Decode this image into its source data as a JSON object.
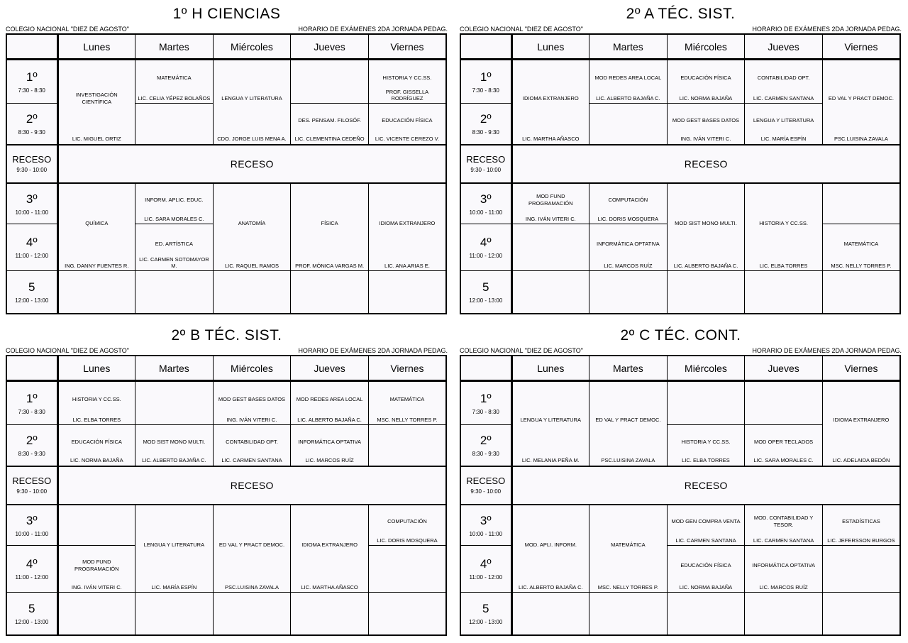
{
  "school": "COLEGIO NACIONAL \"DIEZ DE AGOSTO\"",
  "note": "HORARIO DE EXÁMENES 2DA JORNADA PEDAG.",
  "days": [
    "Lunes",
    "Martes",
    "Miércoles",
    "Jueves",
    "Viernes"
  ],
  "receso": {
    "label": "RECESO",
    "time": "9:30 - 10:00",
    "band": "RECESO"
  },
  "tables": [
    {
      "title": "1º H CIENCIAS",
      "rows": [
        {
          "period": "1º",
          "time": "7:30 - 8:30",
          "cells": [
            {
              "s": "INVESTIGACIÓN CIENTÍFICA",
              "t": "LIC. MIGUEL ORTIZ",
              "rs": 2
            },
            {
              "s": "MATEMÁTICA",
              "t": "LIC. CELIA YÉPEZ BOLAÑOS"
            },
            {
              "s": "LENGUA Y LITERATURA",
              "t": "CDO. JORGE LUIS MENA A.",
              "rs": 2
            },
            {},
            {
              "s": "HISTORIA Y CC.SS.",
              "t": "PROF. GISSELLA RODRÍGUEZ"
            }
          ]
        },
        {
          "period": "2º",
          "time": "8:30 - 9:30",
          "cells": [
            {},
            {
              "s": "DES. PENSAM. FILOSÓF.",
              "t": "LIC. CLEMENTINA CEDEÑO"
            },
            {
              "s": "EDUCACIÓN FÍSICA",
              "t": "LIC. VICENTE CEREZO V."
            }
          ]
        },
        {
          "receso": true
        },
        {
          "period": "3º",
          "time": "10:00 - 11:00",
          "cells": [
            {
              "s": "QUÍMICA",
              "t": "ING. DANNY FUENTES R.",
              "rs": 2
            },
            {
              "s": "INFORM. APLIC. EDUC.",
              "t": "LIC. SARA MORALES C."
            },
            {
              "s": "ANATOMÍA",
              "t": "LIC. RAQUEL RAMOS",
              "rs": 2
            },
            {
              "s": "FÍSICA",
              "t": "PROF. MÓNICA VARGAS M.",
              "rs": 2
            },
            {
              "s": "IDIOMA EXTRANJERO",
              "t": "LIC. ANA ARIAS E.",
              "rs": 2
            }
          ]
        },
        {
          "period": "4º",
          "time": "11:00 - 12:00",
          "cells": [
            {
              "s": "ED. ARTÍSTICA",
              "t": "LIC. CARMEN SOTOMAYOR M."
            }
          ]
        },
        {
          "period": "5",
          "time": "12:00 - 13:00",
          "cells": [
            {},
            {},
            {},
            {},
            {}
          ]
        }
      ]
    },
    {
      "title": "2º A TÉC. SIST.",
      "rows": [
        {
          "period": "1º",
          "time": "7:30 - 8:30",
          "cells": [
            {
              "s": "IDIOMA EXTRANJERO",
              "t": "LIC. MARTHA AÑASCO",
              "rs": 2
            },
            {
              "s": "MOD REDES AREA LOCAL",
              "t": "LIC. ALBERTO BAJAÑA C."
            },
            {
              "s": "EDUCACIÓN FÍSICA",
              "t": "LIC. NORMA BAJAÑA"
            },
            {
              "s": "CONTABILIDAD OPT.",
              "t": "LIC. CARMEN SANTANA"
            },
            {
              "s": "ED VAL Y PRACT DEMOC.",
              "t": "PSC.LUISINA ZAVALA",
              "rs": 2
            }
          ]
        },
        {
          "period": "2º",
          "time": "8:30 - 9:30",
          "cells": [
            {},
            {
              "s": "MOD GEST BASES DATOS",
              "t": "ING. IVÁN VITERI C."
            },
            {
              "s": "LENGUA Y LITERATURA",
              "t": "LIC. MARÍA ESPÍN"
            }
          ]
        },
        {
          "receso": true
        },
        {
          "period": "3º",
          "time": "10:00 - 11:00",
          "cells": [
            {
              "s": "MOD FUND PROGRAMACIÓN",
              "t": "ING. IVÁN VITERI C."
            },
            {
              "s": "COMPUTACIÓN",
              "t": "LIC. DORIS MOSQUERA"
            },
            {
              "s": "MOD SIST MONO MULTI.",
              "t": "LIC. ALBERTO BAJAÑA C.",
              "rs": 2
            },
            {
              "s": "HISTORIA Y CC.SS.",
              "t": "LIC. ELBA TORRES",
              "rs": 2
            },
            {}
          ]
        },
        {
          "period": "4º",
          "time": "11:00 - 12:00",
          "cells": [
            {},
            {
              "s": "INFORMÁTICA OPTATIVA",
              "t": "LIC. MARCOS RUÍZ"
            },
            {
              "s": "MATEMÁTICA",
              "t": "MSC. NELLY TORRES P."
            }
          ]
        },
        {
          "period": "5",
          "time": "12:00 - 13:00",
          "cells": [
            {},
            {},
            {},
            {},
            {}
          ]
        }
      ]
    },
    {
      "title": "2º B TÉC. SIST.",
      "rows": [
        {
          "period": "1º",
          "time": "7:30 - 8:30",
          "cells": [
            {
              "s": "HISTORIA Y CC.SS.",
              "t": "LIC. ELBA TORRES"
            },
            {},
            {
              "s": "MOD GEST BASES DATOS",
              "t": "ING. IVÁN VITERI C."
            },
            {
              "s": "MOD REDES AREA LOCAL",
              "t": "LIC. ALBERTO BAJAÑA C."
            },
            {
              "s": "MATEMÁTICA",
              "t": "MSC. NELLY TORRES P."
            }
          ]
        },
        {
          "period": "2º",
          "time": "8:30 - 9:30",
          "cells": [
            {
              "s": "EDUCACIÓN FÍSICA",
              "t": "LIC. NORMA BAJAÑA"
            },
            {
              "s": "MOD SIST MONO MULTI.",
              "t": "LIC. ALBERTO BAJAÑA C."
            },
            {
              "s": "CONTABILIDAD OPT.",
              "t": "LIC. CARMEN SANTANA"
            },
            {
              "s": "INFORMÁTICA OPTATIVA",
              "t": "LIC. MARCOS RUÍZ"
            },
            {}
          ]
        },
        {
          "receso": true
        },
        {
          "period": "3º",
          "time": "10:00 - 11:00",
          "cells": [
            {},
            {
              "s": "LENGUA Y LITERATURA",
              "t": "LIC. MARÍA ESPÍN",
              "rs": 2
            },
            {
              "s": "ED VAL Y PRACT DEMOC.",
              "t": "PSC.LUISINA ZAVALA",
              "rs": 2
            },
            {
              "s": "IDIOMA EXTRANJERO",
              "t": "LIC. MARTHA AÑASCO",
              "rs": 2
            },
            {
              "s": "COMPUTACIÓN",
              "t": "LIC. DORIS MOSQUERA"
            }
          ]
        },
        {
          "period": "4º",
          "time": "11:00 - 12:00",
          "cells": [
            {
              "s": "MOD FUND PROGRAMACIÓN",
              "t": "ING. IVÁN VITERI C."
            },
            {}
          ]
        },
        {
          "period": "5",
          "time": "12:00 - 13:00",
          "cells": [
            {},
            {},
            {},
            {},
            {}
          ]
        }
      ]
    },
    {
      "title": "2º C TÉC. CONT.",
      "rows": [
        {
          "period": "1º",
          "time": "7:30 - 8:30",
          "cells": [
            {
              "s": "LENGUA Y LITERATURA",
              "t": "LIC. MELANIA PEÑA M.",
              "rs": 2
            },
            {
              "s": "ED VAL Y PRACT DEMOC.",
              "t": "PSC.LUISINA ZAVALA",
              "rs": 2
            },
            {},
            {},
            {
              "s": "IDIOMA EXTRANJERO",
              "t": "LIC. ADELAIDA BEDÓN",
              "rs": 2
            }
          ]
        },
        {
          "period": "2º",
          "time": "8:30 - 9:30",
          "cells": [
            {
              "s": "HISTORIA Y CC.SS.",
              "t": "LIC. ELBA TORRES"
            },
            {
              "s": "MOD OPER TECLADOS",
              "t": "LIC. SARA MORALES C."
            }
          ]
        },
        {
          "receso": true
        },
        {
          "period": "3º",
          "time": "10:00 - 11:00",
          "cells": [
            {
              "s": "MOD. APLI. INFORM.",
              "t": "LIC. ALBERTO BAJAÑA C.",
              "rs": 2
            },
            {
              "s": "MATEMÁTICA",
              "t": "MSC. NELLY TORRES P.",
              "rs": 2
            },
            {
              "s": "MOD GEN COMPRA VENTA",
              "t": "LIC. CARMEN SANTANA"
            },
            {
              "s": "MOD. CONTABILIDAD Y TESOR.",
              "t": "LIC. CARMEN SANTANA"
            },
            {
              "s": "ESTADÍSTICAS",
              "t": "LIC. JEFERSSON BURGOS"
            }
          ]
        },
        {
          "period": "4º",
          "time": "11:00 - 12:00",
          "cells": [
            {
              "s": "EDUCACIÓN FÍSICA",
              "t": "LIC. NORMA BAJAÑA"
            },
            {
              "s": "INFORMÁTICA OPTATIVA",
              "t": "LIC. MARCOS RUÍZ"
            },
            {}
          ]
        },
        {
          "period": "5",
          "time": "12:00 - 13:00",
          "cells": [
            {},
            {},
            {},
            {},
            {}
          ]
        }
      ]
    }
  ]
}
